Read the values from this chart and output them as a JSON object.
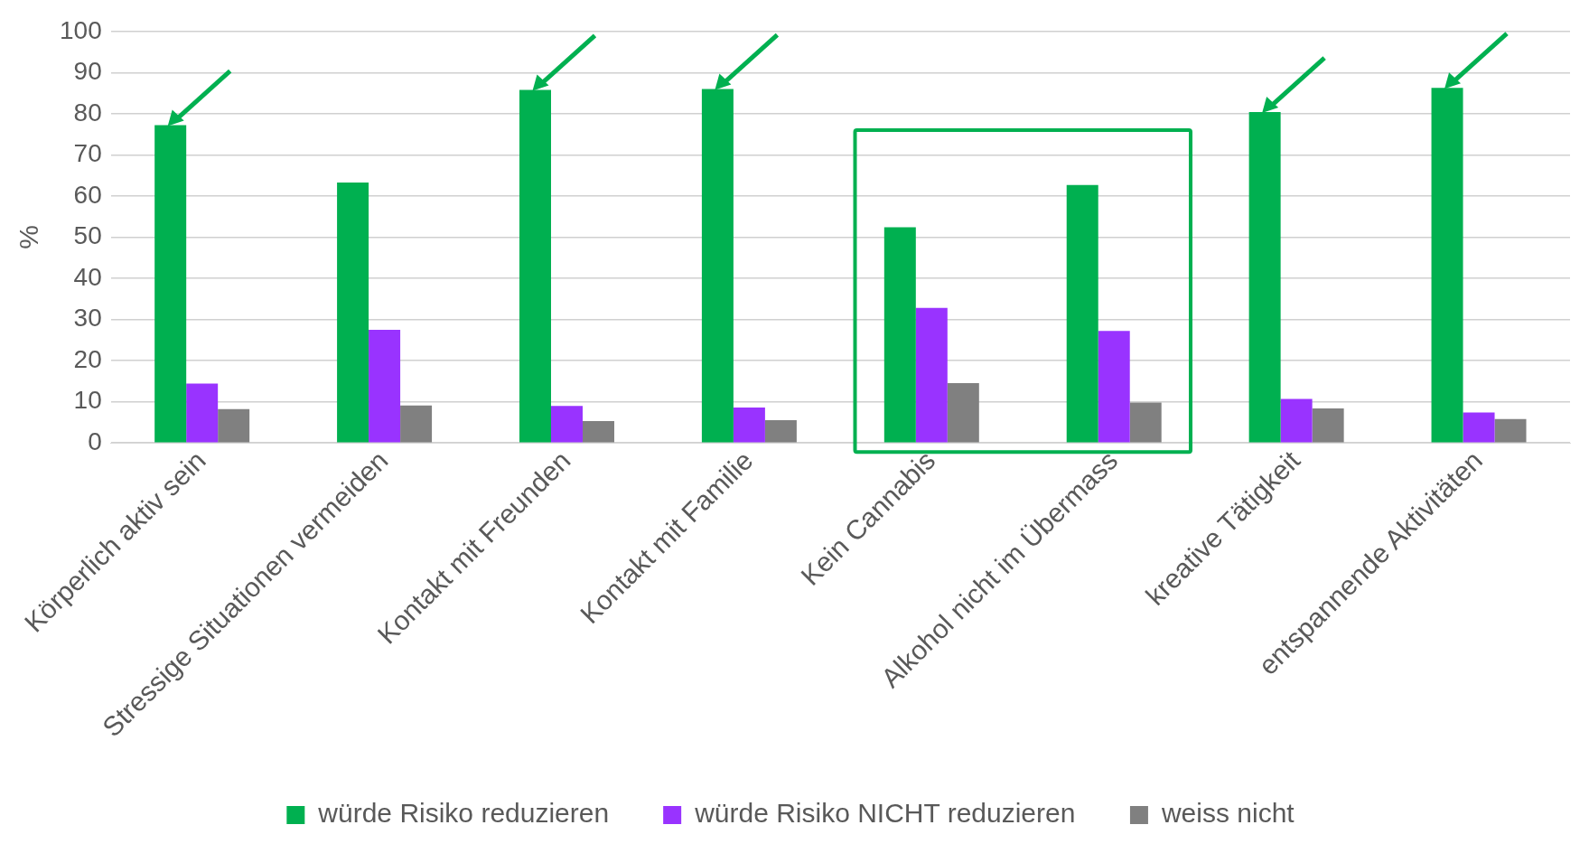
{
  "chart_data": {
    "type": "bar",
    "ylabel": "%",
    "categories": [
      "Körperlich aktiv sein",
      "Stressige Situationen vermeiden",
      "Kontakt mit Freunden",
      "Kontakt mit Familie",
      "Kein Cannabis",
      "Alkohol nicht im Übermass",
      "kreative Tätigkeit",
      "entspannende Aktivitäten"
    ],
    "series": [
      {
        "name": "würde Risiko reduzieren",
        "color": "#00b050",
        "values": [
          77.2,
          63.3,
          85.8,
          86,
          52.4,
          62.7,
          80.4,
          86.3
        ]
      },
      {
        "name": "würde Risiko NICHT reduzieren",
        "color": "#9933ff",
        "values": [
          14.4,
          27.5,
          9,
          8.6,
          32.8,
          27.2,
          10.7,
          7.4
        ]
      },
      {
        "name": "weiss nicht",
        "color": "#808080",
        "values": [
          8.2,
          9.1,
          5.3,
          5.5,
          14.5,
          9.8,
          8.4,
          5.8
        ]
      }
    ],
    "ylim": [
      0,
      100
    ],
    "yticks": [
      0,
      10,
      20,
      30,
      40,
      50,
      60,
      70,
      80,
      90,
      100
    ],
    "grid": "y",
    "legend": "bottom"
  }
}
